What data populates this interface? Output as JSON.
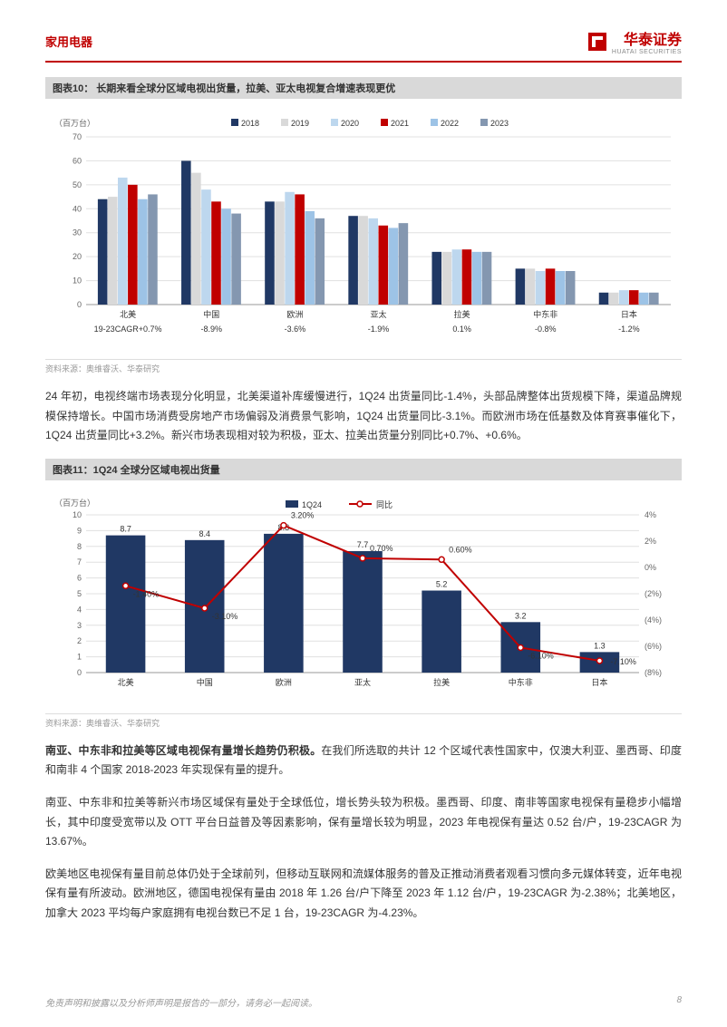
{
  "header": {
    "category": "家用电器",
    "company": "华泰证券",
    "company_en": "HUATAI SECURITIES"
  },
  "chart10": {
    "title": "图表10：  长期来看全球分区域电视出货量，拉美、亚太电视复合增速表现更优",
    "type": "bar",
    "y_label": "（百万台）",
    "y_ticks": [
      0,
      10,
      20,
      30,
      40,
      50,
      60,
      70
    ],
    "ylim": [
      0,
      70
    ],
    "categories": [
      "北美",
      "中国",
      "欧洲",
      "亚太",
      "拉美",
      "中东非",
      "日本"
    ],
    "cagr_labels": [
      "19-23CAGR+0.7%",
      "-8.9%",
      "-3.6%",
      "-1.9%",
      "0.1%",
      "-0.8%",
      "-1.2%"
    ],
    "legend": [
      "2018",
      "2019",
      "2020",
      "2021",
      "2022",
      "2023"
    ],
    "legend_colors": [
      "#203864",
      "#d9d9d9",
      "#bdd7ee",
      "#c00000",
      "#9dc3e6",
      "#8497b0"
    ],
    "series": {
      "2018": [
        44,
        60,
        43,
        37,
        22,
        15,
        5
      ],
      "2019": [
        45,
        55,
        43,
        37,
        22,
        15,
        5
      ],
      "2020": [
        53,
        48,
        47,
        36,
        23,
        14,
        6
      ],
      "2021": [
        50,
        43,
        46,
        33,
        23,
        15,
        6
      ],
      "2022": [
        44,
        40,
        39,
        32,
        22,
        14,
        5
      ],
      "2023": [
        46,
        38,
        36,
        34,
        22,
        14,
        5
      ]
    },
    "source": "资料来源：奥维睿沃、华泰研究",
    "background_color": "#ffffff",
    "grid_color": "#e0e0e0",
    "label_fontsize": 9,
    "bar_width": 0.12
  },
  "paragraph1": "24 年初，电视终端市场表现分化明显，北美渠道补库缓慢进行，1Q24 出货量同比-1.4%，头部品牌整体出货规模下降，渠道品牌规模保持增长。中国市场消费受房地产市场偏弱及消费景气影响，1Q24 出货量同比-3.1%。而欧洲市场在低基数及体育赛事催化下，1Q24 出货量同比+3.2%。新兴市场表现相对较为积极，亚太、拉美出货量分别同比+0.7%、+0.6%。",
  "chart11": {
    "title": "图表11：1Q24 全球分区域电视出货量",
    "type": "bar_line",
    "y_left_label": "（百万台）",
    "y_left_ticks": [
      0,
      1,
      2,
      3,
      4,
      5,
      6,
      7,
      8,
      9,
      10
    ],
    "y_left_lim": [
      0,
      10
    ],
    "y_right_label": "",
    "y_right_ticks": [
      "4%",
      "2%",
      "0%",
      "(2%)",
      "(4%)",
      "(6%)",
      "(8%)"
    ],
    "y_right_lim": [
      -8,
      4
    ],
    "categories": [
      "北美",
      "中国",
      "欧洲",
      "亚太",
      "拉美",
      "中东非",
      "日本"
    ],
    "legend": [
      "1Q24",
      "同比"
    ],
    "bar_color": "#203864",
    "line_color": "#c00000",
    "bar_values": [
      8.7,
      8.4,
      8.8,
      7.7,
      5.2,
      3.2,
      1.3
    ],
    "line_values": [
      -1.4,
      -3.1,
      3.2,
      0.7,
      0.6,
      -6.1,
      -7.1
    ],
    "line_labels": [
      "-1.40%",
      "-3.10%",
      "3.20%",
      "0.70%",
      "0.60%",
      "-6.10%",
      "-7.10%"
    ],
    "source": "资料来源：奥维睿沃、华泰研究",
    "background_color": "#ffffff",
    "grid_color": "#e0e0e0",
    "label_fontsize": 9,
    "marker_style": "circle",
    "marker_size": 3
  },
  "heading1": "南亚、中东非和拉美等区域电视保有量增长趋势仍积极。",
  "paragraph2": "在我们所选取的共计 12 个区域代表性国家中，仅澳大利亚、墨西哥、印度和南非 4 个国家 2018-2023 年实现保有量的提升。",
  "paragraph3": "南亚、中东非和拉美等新兴市场区域保有量处于全球低位，增长势头较为积极。墨西哥、印度、南非等国家电视保有量稳步小幅增长，其中印度受宽带以及 OTT 平台日益普及等因素影响，保有量增长较为明显，2023 年电视保有量达 0.52 台/户，19-23CAGR 为 13.67%。",
  "paragraph4": "欧美地区电视保有量目前总体仍处于全球前列，但移动互联网和流媒体服务的普及正推动消费者观看习惯向多元媒体转变，近年电视保有量有所波动。欧洲地区，德国电视保有量由 2018 年 1.26 台/户下降至 2023 年 1.12 台/户，19-23CAGR 为-2.38%；北美地区，加拿大 2023 平均每户家庭拥有电视台数已不足 1 台，19-23CAGR 为-4.23%。",
  "footer": {
    "disclaimer": "免责声明和披露以及分析师声明是报告的一部分，请务必一起阅读。",
    "page": "8"
  }
}
